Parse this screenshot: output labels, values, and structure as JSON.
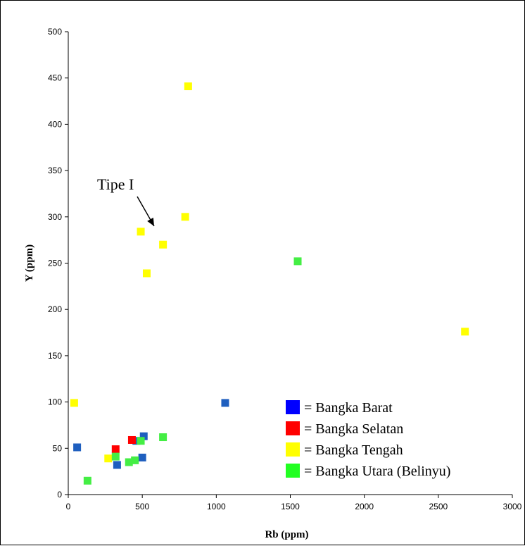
{
  "chart_data": {
    "type": "scatter",
    "title": "",
    "xlabel": "Rb  (ppm)",
    "ylabel": "Y  (ppm)",
    "xlim": [
      0,
      3000
    ],
    "ylim": [
      0,
      500
    ],
    "xticks": [
      "0",
      "500",
      "1000",
      "1500",
      "2000",
      "2500",
      "3000"
    ],
    "yticks": [
      "0",
      "50",
      "100",
      "150",
      "200",
      "250",
      "300",
      "350",
      "400",
      "450",
      "500"
    ],
    "grid": false,
    "legend_position": "bottom-right",
    "series": [
      {
        "name": "= Bangka Barat",
        "color": "#1f5fbf",
        "points": [
          [
            60,
            51
          ],
          [
            330,
            32
          ],
          [
            460,
            58
          ],
          [
            510,
            63
          ],
          [
            500,
            40
          ],
          [
            1060,
            99
          ]
        ]
      },
      {
        "name": "= Bangka Selatan",
        "color": "#ff0000",
        "points": [
          [
            320,
            49
          ],
          [
            430,
            59
          ]
        ]
      },
      {
        "name": "= Bangka Tengah",
        "color": "#ffff00",
        "points": [
          [
            40,
            99
          ],
          [
            270,
            39
          ],
          [
            490,
            284
          ],
          [
            530,
            239
          ],
          [
            640,
            270
          ],
          [
            790,
            300
          ],
          [
            810,
            441
          ],
          [
            2680,
            176
          ]
        ]
      },
      {
        "name": "= Bangka Utara (Belinyu)",
        "color": "#44ee44",
        "points": [
          [
            130,
            15
          ],
          [
            320,
            41
          ],
          [
            410,
            35
          ],
          [
            450,
            37
          ],
          [
            490,
            58
          ],
          [
            640,
            62
          ],
          [
            1550,
            252
          ]
        ]
      }
    ],
    "legend_swatch_colors": [
      "#0000ff",
      "#ff0000",
      "#ffff00",
      "#22ff22"
    ],
    "annotations": [
      {
        "text": "Tipe I",
        "arrow_to": [
          580,
          290
        ]
      }
    ]
  }
}
